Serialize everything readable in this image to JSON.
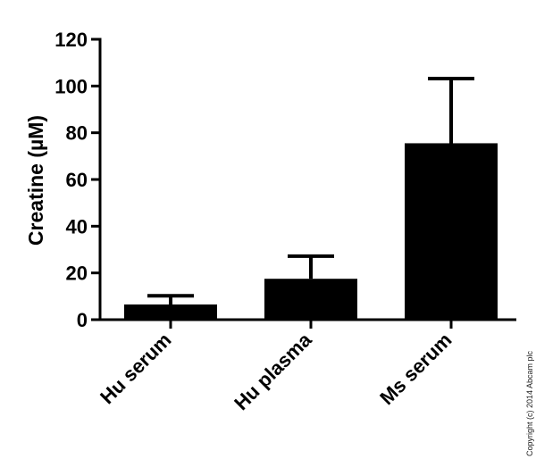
{
  "chart_data": {
    "type": "bar",
    "categories": [
      "Hu serum",
      "Hu plasma",
      "Ms serum"
    ],
    "values": [
      6.5,
      17.5,
      75.5
    ],
    "error_upper": [
      10.2,
      27.2,
      103.2
    ],
    "ylabel": "Creatine (µM)",
    "xlabel": "",
    "ylim": [
      0,
      120
    ],
    "yticks": [
      0,
      20,
      40,
      60,
      80,
      100,
      120
    ],
    "grid": false,
    "bar_color": "#000000"
  },
  "copyright": "Copyright (c) 2014 Abcam plc"
}
